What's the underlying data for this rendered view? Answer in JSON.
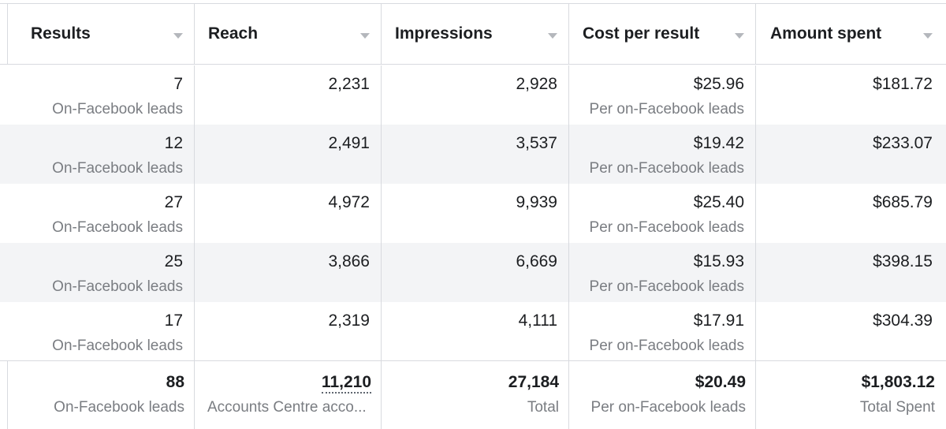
{
  "columns": [
    {
      "key": "results",
      "label": "Results",
      "sort_icon": "caret-down-icon"
    },
    {
      "key": "reach",
      "label": "Reach",
      "sort_icon": "caret-down-icon"
    },
    {
      "key": "impressions",
      "label": "Impressions",
      "sort_icon": "caret-down-icon"
    },
    {
      "key": "cost_per_result",
      "label": "Cost per result",
      "sort_icon": "caret-down-icon"
    },
    {
      "key": "amount_spent",
      "label": "Amount spent",
      "sort_icon": "caret-down-icon"
    }
  ],
  "rows": [
    {
      "results": "7",
      "results_label": "On-Facebook leads",
      "reach": "2,231",
      "impressions": "2,928",
      "cost_per_result": "$25.96",
      "cost_label": "Per on-Facebook leads",
      "amount_spent": "$181.72"
    },
    {
      "results": "12",
      "results_label": "On-Facebook leads",
      "reach": "2,491",
      "impressions": "3,537",
      "cost_per_result": "$19.42",
      "cost_label": "Per on-Facebook leads",
      "amount_spent": "$233.07"
    },
    {
      "results": "27",
      "results_label": "On-Facebook leads",
      "reach": "4,972",
      "impressions": "9,939",
      "cost_per_result": "$25.40",
      "cost_label": "Per on-Facebook leads",
      "amount_spent": "$685.79"
    },
    {
      "results": "25",
      "results_label": "On-Facebook leads",
      "reach": "3,866",
      "impressions": "6,669",
      "cost_per_result": "$15.93",
      "cost_label": "Per on-Facebook leads",
      "amount_spent": "$398.15"
    },
    {
      "results": "17",
      "results_label": "On-Facebook leads",
      "reach": "2,319",
      "impressions": "4,111",
      "cost_per_result": "$17.91",
      "cost_label": "Per on-Facebook leads",
      "amount_spent": "$304.39"
    }
  ],
  "totals": {
    "results": "88",
    "results_label": "On-Facebook leads",
    "reach": "11,210",
    "reach_label": "Accounts Centre acco...",
    "impressions": "27,184",
    "impressions_label": "Total",
    "cost_per_result": "$20.49",
    "cost_label": "Per on-Facebook leads",
    "amount_spent": "$1,803.12",
    "amount_label": "Total Spent"
  },
  "colors": {
    "border": "#d8dadf",
    "alt_row": "#f3f4f6",
    "subtext": "#7a7d82",
    "text": "#1c1e21"
  }
}
